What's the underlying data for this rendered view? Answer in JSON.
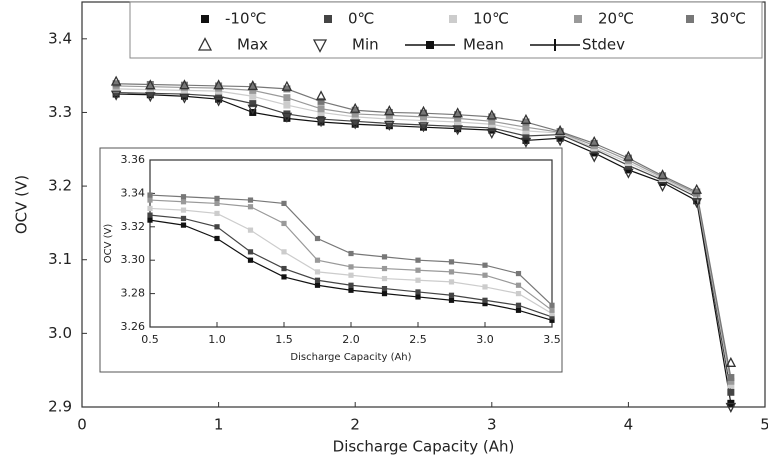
{
  "charts": [
    {
      "type": "line",
      "x_label": "Discharge Capacity  (Ah)",
      "y_label": "OCV (V)",
      "xlim": [
        0,
        5
      ],
      "ylim": [
        2.9,
        3.45
      ],
      "xticks": [
        0,
        1,
        2,
        3,
        4,
        5
      ],
      "yticks": [
        2.9,
        {
          "value": 3,
          "label": "3.0"
        },
        3.1,
        3.2,
        3.3,
        3.4
      ],
      "x": [
        0.25,
        0.5,
        0.75,
        1,
        1.25,
        1.5,
        1.75,
        2,
        2.25,
        2.5,
        2.75,
        3,
        3.25,
        3.5,
        3.75,
        4,
        4.25,
        4.5,
        4.75
      ],
      "series": [
        {
          "name": "-10℃",
          "color": "#111111",
          "marker": "square",
          "line": true,
          "values": [
            3.325,
            3.324,
            3.322,
            3.318,
            3.3,
            3.292,
            3.287,
            3.284,
            3.282,
            3.28,
            3.278,
            3.276,
            3.262,
            3.265,
            3.245,
            3.222,
            3.205,
            3.18,
            2.905
          ]
        },
        {
          "name": "0℃",
          "color": "#444444",
          "marker": "square",
          "line": true,
          "values": [
            3.327,
            3.326,
            3.325,
            3.322,
            3.312,
            3.298,
            3.291,
            3.288,
            3.285,
            3.283,
            3.281,
            3.279,
            3.268,
            3.27,
            3.25,
            3.228,
            3.208,
            3.185,
            2.92
          ]
        },
        {
          "name": "10℃",
          "color": "#cccccc",
          "marker": "square",
          "line": true,
          "values": [
            3.332,
            3.331,
            3.33,
            3.329,
            3.322,
            3.31,
            3.3,
            3.294,
            3.291,
            3.289,
            3.287,
            3.284,
            3.275,
            3.272,
            3.252,
            3.232,
            3.21,
            3.188,
            2.93
          ]
        },
        {
          "name": "20℃",
          "color": "#999999",
          "marker": "square",
          "line": true,
          "values": [
            3.336,
            3.335,
            3.334,
            3.333,
            3.33,
            3.32,
            3.305,
            3.298,
            3.296,
            3.294,
            3.292,
            3.288,
            3.28,
            3.273,
            3.255,
            3.235,
            3.212,
            3.19,
            2.935
          ]
        },
        {
          "name": "30℃",
          "color": "#777777",
          "marker": "square",
          "line": true,
          "values": [
            3.339,
            3.338,
            3.337,
            3.336,
            3.335,
            3.332,
            3.315,
            3.303,
            3.3,
            3.299,
            3.297,
            3.294,
            3.287,
            3.274,
            3.258,
            3.238,
            3.214,
            3.192,
            2.94
          ]
        },
        {
          "name": "Max",
          "color": "#333333",
          "marker": "triangle-up",
          "line": false,
          "values": [
            3.342,
            3.337,
            3.337,
            3.337,
            3.336,
            3.335,
            3.322,
            3.305,
            3.302,
            3.301,
            3.299,
            3.296,
            3.29,
            3.275,
            3.26,
            3.24,
            3.215,
            3.195,
            2.96
          ]
        },
        {
          "name": "Min",
          "color": "#333333",
          "marker": "triangle-down",
          "line": false,
          "values": [
            3.324,
            3.322,
            3.32,
            3.316,
            3.305,
            3.294,
            3.288,
            3.285,
            3.283,
            3.281,
            3.277,
            3.272,
            3.26,
            3.262,
            3.24,
            3.218,
            3.2,
            3.178,
            2.9
          ]
        }
      ],
      "legend_extra": [
        "Mean",
        "Stdev"
      ]
    },
    {
      "type": "line",
      "x_label": "Discharge Capacity  (Ah)",
      "y_label": "OCV  (V)",
      "xlim": [
        0.5,
        3.5
      ],
      "ylim": [
        3.26,
        3.36
      ],
      "xticks": [
        0.5,
        {
          "value": 1,
          "label": "1.0"
        },
        1.5,
        {
          "value": 2,
          "label": "2.0"
        },
        2.5,
        {
          "value": 3,
          "label": "3.0"
        },
        3.5
      ],
      "yticks": [
        3.26,
        3.28,
        {
          "value": 3.3,
          "label": "3.30"
        },
        3.32,
        3.34,
        3.36
      ],
      "x": [
        0.5,
        0.75,
        1,
        1.25,
        1.5,
        1.75,
        2,
        2.25,
        2.5,
        2.75,
        3,
        3.25,
        3.5
      ],
      "series": [
        {
          "name": "-10℃",
          "color": "#111111",
          "marker": "square",
          "line": true,
          "values": [
            3.324,
            3.321,
            3.313,
            3.3,
            3.29,
            3.285,
            3.282,
            3.28,
            3.278,
            3.276,
            3.274,
            3.27,
            3.264
          ]
        },
        {
          "name": "0℃",
          "color": "#444444",
          "marker": "square",
          "line": true,
          "values": [
            3.327,
            3.325,
            3.32,
            3.305,
            3.295,
            3.288,
            3.285,
            3.283,
            3.281,
            3.279,
            3.276,
            3.273,
            3.266
          ]
        },
        {
          "name": "10℃",
          "color": "#cccccc",
          "marker": "square",
          "line": true,
          "values": [
            3.331,
            3.33,
            3.328,
            3.318,
            3.305,
            3.293,
            3.291,
            3.289,
            3.288,
            3.287,
            3.284,
            3.28,
            3.268
          ]
        },
        {
          "name": "20℃",
          "color": "#999999",
          "marker": "square",
          "line": true,
          "values": [
            3.336,
            3.335,
            3.334,
            3.332,
            3.322,
            3.3,
            3.296,
            3.295,
            3.294,
            3.293,
            3.291,
            3.285,
            3.27
          ]
        },
        {
          "name": "30℃",
          "color": "#777777",
          "marker": "square",
          "line": true,
          "values": [
            3.339,
            3.338,
            3.337,
            3.336,
            3.334,
            3.313,
            3.304,
            3.302,
            3.3,
            3.299,
            3.297,
            3.292,
            3.273
          ]
        }
      ]
    }
  ]
}
